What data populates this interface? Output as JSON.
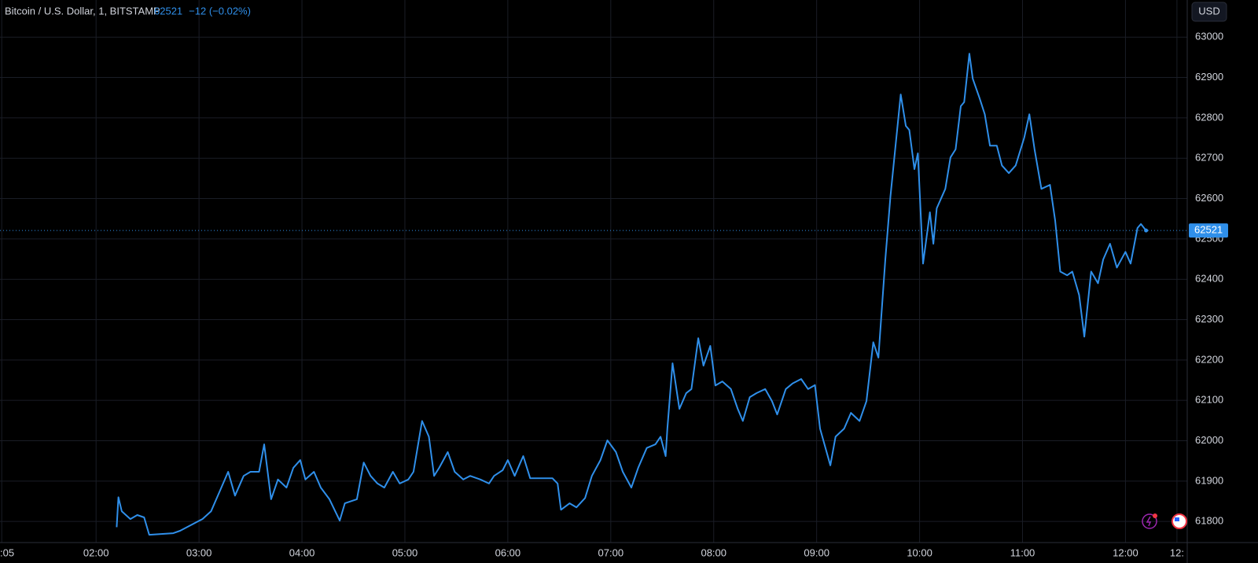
{
  "chart_data": {
    "type": "line",
    "title": "Bitcoin / U.S. Dollar, 1, BITSTAMP",
    "last_price": 62521,
    "change": "−12 (−0.02%)",
    "currency": "USD",
    "grid": true,
    "xlim": [
      64,
      756
    ],
    "xticks": [
      {
        "value": 65,
        "label": ":05"
      },
      {
        "value": 120,
        "label": "02:00"
      },
      {
        "value": 180,
        "label": "03:00"
      },
      {
        "value": 240,
        "label": "04:00"
      },
      {
        "value": 300,
        "label": "05:00"
      },
      {
        "value": 360,
        "label": "06:00"
      },
      {
        "value": 420,
        "label": "07:00"
      },
      {
        "value": 480,
        "label": "08:00"
      },
      {
        "value": 540,
        "label": "09:00"
      },
      {
        "value": 600,
        "label": "10:00"
      },
      {
        "value": 660,
        "label": "11:00"
      },
      {
        "value": 720,
        "label": "12:00"
      },
      {
        "value": 750,
        "label": "12:"
      }
    ],
    "ylim": [
      61775,
      63092
    ],
    "yticks": [
      61800,
      61900,
      62000,
      62100,
      62200,
      62300,
      62400,
      62500,
      62600,
      62700,
      62800,
      62900,
      63000
    ],
    "series": [
      {
        "color": "#2f8fea",
        "x": [
          132,
          133,
          135,
          140,
          144,
          148,
          151,
          165,
          169,
          182,
          187,
          193,
          197,
          201,
          206,
          210,
          215,
          218,
          222,
          226,
          231,
          235,
          239,
          242,
          247,
          251,
          256,
          262,
          265,
          272,
          276,
          280,
          284,
          288,
          293,
          297,
          302,
          305,
          310,
          314,
          317,
          320,
          325,
          329,
          334,
          338,
          344,
          349,
          352,
          357,
          360,
          364,
          367,
          369,
          373,
          380,
          386,
          389,
          391,
          396,
          400,
          405,
          409,
          414,
          418,
          423,
          427,
          432,
          436,
          441,
          446,
          449,
          452,
          453,
          456,
          460,
          464,
          467,
          471,
          474,
          478,
          481,
          485,
          490,
          494,
          497,
          501,
          505,
          510,
          514,
          517,
          522,
          526,
          531,
          535,
          539,
          542,
          548,
          551,
          556,
          560,
          565,
          569,
          573,
          576,
          580,
          583,
          586,
          589,
          592,
          594,
          597,
          599,
          602,
          606,
          608,
          610,
          615,
          618,
          621,
          624,
          626,
          629,
          631,
          635,
          638,
          641,
          645,
          648,
          652,
          656,
          661,
          664,
          667,
          671,
          676,
          679,
          682,
          686,
          689,
          693,
          696,
          700,
          704,
          707,
          711,
          715,
          720,
          723,
          727,
          729,
          732
        ],
        "values": [
          61786,
          61860,
          61825,
          61806,
          61816,
          61810,
          61767,
          61771,
          61777,
          61806,
          61825,
          61884,
          61923,
          61864,
          61913,
          61923,
          61923,
          61991,
          61855,
          61904,
          61884,
          61933,
          61952,
          61904,
          61923,
          61884,
          61855,
          61802,
          61845,
          61855,
          61946,
          61913,
          61894,
          61884,
          61923,
          61894,
          61904,
          61923,
          62049,
          62010,
          61913,
          61933,
          61972,
          61923,
          61904,
          61913,
          61904,
          61894,
          61913,
          61927,
          61952,
          61913,
          61943,
          61962,
          61907,
          61907,
          61907,
          61894,
          61829,
          61845,
          61835,
          61858,
          61913,
          61952,
          62001,
          61972,
          61923,
          61884,
          61933,
          61982,
          61991,
          62010,
          61962,
          62030,
          62192,
          62079,
          62118,
          62128,
          62254,
          62186,
          62235,
          62137,
          62147,
          62128,
          62079,
          62049,
          62108,
          62118,
          62128,
          62098,
          62065,
          62128,
          62142,
          62153,
          62128,
          62138,
          62030,
          61939,
          62010,
          62030,
          62069,
          62049,
          62098,
          62244,
          62206,
          62449,
          62605,
          62731,
          62858,
          62780,
          62770,
          62673,
          62712,
          62439,
          62566,
          62488,
          62576,
          62624,
          62702,
          62722,
          62829,
          62839,
          62959,
          62897,
          62848,
          62809,
          62731,
          62731,
          62682,
          62663,
          62682,
          62751,
          62809,
          62722,
          62624,
          62634,
          62546,
          62419,
          62410,
          62419,
          62361,
          62258,
          62419,
          62390,
          62449,
          62488,
          62429,
          62468,
          62439,
          62527,
          62537,
          62521
        ]
      }
    ]
  }
}
